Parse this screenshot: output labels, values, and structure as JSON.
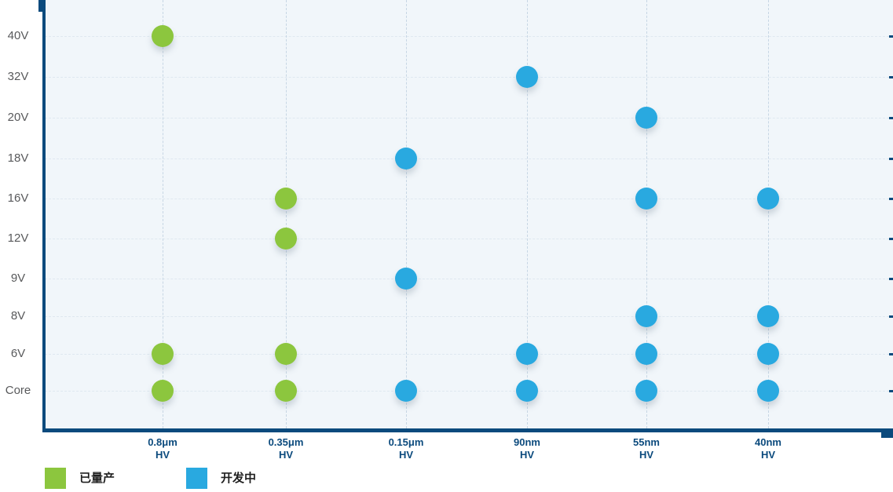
{
  "chart_data": {
    "type": "scatter",
    "title": "",
    "x_axis_label": "",
    "y_axis_label": "",
    "x_categories": [
      "0.8μm",
      "0.35μm",
      "0.15μm",
      "90nm",
      "55nm",
      "40nm"
    ],
    "x_sublabel": "HV",
    "y_categories": [
      "40V",
      "32V",
      "20V",
      "18V",
      "16V",
      "12V",
      "9V",
      "8V",
      "6V",
      "Core"
    ],
    "grid": "dashed",
    "legend_position": "bottom-left",
    "plot_background": "#f1f6fa",
    "axis_color": "#0b4a7d",
    "series": [
      {
        "name": "已量产",
        "color": "#8cc63e",
        "points": [
          {
            "x": "0.8μm",
            "y": "40V"
          },
          {
            "x": "0.8μm",
            "y": "6V"
          },
          {
            "x": "0.8μm",
            "y": "Core"
          },
          {
            "x": "0.35μm",
            "y": "16V"
          },
          {
            "x": "0.35μm",
            "y": "12V"
          },
          {
            "x": "0.35μm",
            "y": "6V"
          },
          {
            "x": "0.35μm",
            "y": "Core"
          }
        ]
      },
      {
        "name": "开发中",
        "color": "#29a9e0",
        "points": [
          {
            "x": "0.15μm",
            "y": "18V"
          },
          {
            "x": "0.15μm",
            "y": "9V"
          },
          {
            "x": "0.15μm",
            "y": "Core"
          },
          {
            "x": "90nm",
            "y": "32V"
          },
          {
            "x": "90nm",
            "y": "6V"
          },
          {
            "x": "90nm",
            "y": "Core"
          },
          {
            "x": "55nm",
            "y": "20V"
          },
          {
            "x": "55nm",
            "y": "16V"
          },
          {
            "x": "55nm",
            "y": "8V"
          },
          {
            "x": "55nm",
            "y": "6V"
          },
          {
            "x": "55nm",
            "y": "Core"
          },
          {
            "x": "40nm",
            "y": "16V"
          },
          {
            "x": "40nm",
            "y": "8V"
          },
          {
            "x": "40nm",
            "y": "6V"
          },
          {
            "x": "40nm",
            "y": "Core"
          }
        ]
      }
    ]
  },
  "legend": {
    "items": [
      {
        "label": "已量产",
        "color": "#8cc63e"
      },
      {
        "label": "开发中",
        "color": "#29a9e0"
      }
    ]
  }
}
